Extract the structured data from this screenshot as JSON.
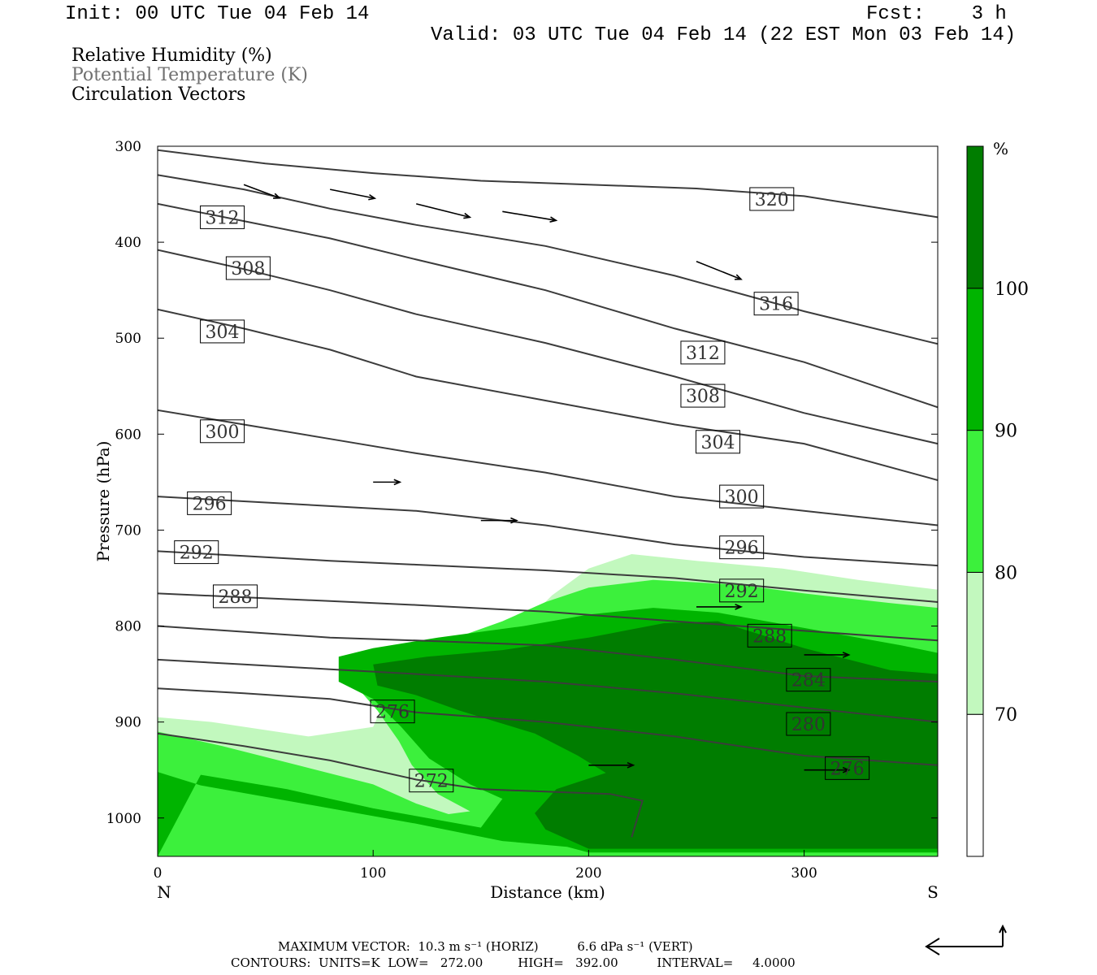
{
  "header": {
    "init": "Init: 00 UTC Tue 04 Feb 14",
    "fcst": "Fcst:    3 h",
    "valid": "Valid: 03 UTC Tue 04 Feb 14 (22 EST Mon 03 Feb 14)"
  },
  "fields": {
    "rh": "Relative Humidity (%)",
    "theta": "Potential Temperature (K)",
    "vectors": "Circulation Vectors"
  },
  "colors": {
    "c70": "#c2f8be",
    "c80": "#3cf03c",
    "c90": "#00b400",
    "c100": "#007d00",
    "contour": "#3c3c3c"
  },
  "chart_data": {
    "type": "cross-section",
    "xlabel": "Distance (km)",
    "ylabel": "Pressure (hPa)",
    "xlim": [
      0,
      362
    ],
    "ylim": [
      1040,
      300
    ],
    "x_ticks": [
      "0",
      "100",
      "200",
      "300"
    ],
    "x_tick_values": [
      0,
      100,
      200,
      300
    ],
    "y_ticks": [
      "300",
      "400",
      "500",
      "600",
      "700",
      "800",
      "900",
      "1000"
    ],
    "y_tick_values": [
      300,
      400,
      500,
      600,
      700,
      800,
      900,
      1000
    ],
    "left_end": "N",
    "right_end": "S",
    "colorbar": {
      "unit": "%",
      "levels": [
        "70",
        "80",
        "90",
        "100"
      ]
    },
    "rh_fills": [
      {
        "level": "70",
        "color": "#c2f8be",
        "points": [
          [
            0,
            1040
          ],
          [
            0,
            895
          ],
          [
            25,
            900
          ],
          [
            70,
            915
          ],
          [
            100,
            905
          ],
          [
            104,
            885
          ],
          [
            114,
            845
          ],
          [
            125,
            830
          ],
          [
            160,
            808
          ],
          [
            175,
            786
          ],
          [
            183,
            768
          ],
          [
            200,
            740
          ],
          [
            220,
            725
          ],
          [
            250,
            732
          ],
          [
            290,
            740
          ],
          [
            325,
            752
          ],
          [
            362,
            762
          ],
          [
            362,
            1040
          ]
        ]
      },
      {
        "level": "80",
        "color": "#3cf03c",
        "points": [
          [
            0,
            1040
          ],
          [
            0,
            910
          ],
          [
            30,
            925
          ],
          [
            65,
            945
          ],
          [
            100,
            965
          ],
          [
            120,
            985
          ],
          [
            135,
            996
          ],
          [
            145,
            993
          ],
          [
            130,
            975
          ],
          [
            118,
            945
          ],
          [
            112,
            920
          ],
          [
            102,
            888
          ],
          [
            95,
            870
          ],
          [
            86,
            855
          ],
          [
            88,
            830
          ],
          [
            110,
            820
          ],
          [
            135,
            815
          ],
          [
            160,
            795
          ],
          [
            180,
            775
          ],
          [
            200,
            760
          ],
          [
            230,
            752
          ],
          [
            270,
            757
          ],
          [
            300,
            766
          ],
          [
            340,
            776
          ],
          [
            362,
            781
          ],
          [
            362,
            1040
          ]
        ]
      },
      {
        "level": "90",
        "color": "#00b400",
        "points": [
          [
            0,
            1040
          ],
          [
            0,
            952
          ],
          [
            20,
            966
          ],
          [
            45,
            976
          ],
          [
            80,
            990
          ],
          [
            120,
            1006
          ],
          [
            160,
            1024
          ],
          [
            190,
            1030
          ],
          [
            200,
            1036
          ],
          [
            362,
            1036
          ],
          [
            362,
            828
          ],
          [
            345,
            820
          ],
          [
            300,
            802
          ],
          [
            260,
            786
          ],
          [
            230,
            781
          ],
          [
            200,
            788
          ],
          [
            170,
            800
          ],
          [
            130,
            812
          ],
          [
            100,
            823
          ],
          [
            84,
            832
          ],
          [
            84,
            858
          ],
          [
            100,
            876
          ],
          [
            113,
            905
          ],
          [
            126,
            938
          ],
          [
            145,
            965
          ],
          [
            160,
            980
          ],
          [
            150,
            1010
          ],
          [
            100,
            990
          ],
          [
            60,
            970
          ],
          [
            20,
            955
          ]
        ]
      },
      {
        "level": "100",
        "color": "#007d00",
        "points": [
          [
            200,
            1032
          ],
          [
            362,
            1032
          ],
          [
            362,
            850
          ],
          [
            340,
            846
          ],
          [
            300,
            823
          ],
          [
            260,
            795
          ],
          [
            235,
            797
          ],
          [
            200,
            812
          ],
          [
            160,
            825
          ],
          [
            125,
            832
          ],
          [
            100,
            840
          ],
          [
            102,
            862
          ],
          [
            120,
            872
          ],
          [
            140,
            888
          ],
          [
            175,
            912
          ],
          [
            195,
            935
          ],
          [
            208,
            953
          ],
          [
            185,
            970
          ],
          [
            175,
            995
          ],
          [
            180,
            1012
          ]
        ]
      }
    ],
    "theta_contours": [
      {
        "label": "320",
        "label_xy": [
          285,
          355
        ],
        "points": [
          [
            0,
            304
          ],
          [
            50,
            318
          ],
          [
            100,
            328
          ],
          [
            150,
            336
          ],
          [
            200,
            340
          ],
          [
            250,
            344
          ],
          [
            300,
            352
          ],
          [
            362,
            374
          ]
        ]
      },
      {
        "label": "316",
        "label_xy": [
          287,
          464
        ],
        "points": [
          [
            0,
            330
          ],
          [
            40,
            345
          ],
          [
            80,
            365
          ],
          [
            120,
            382
          ],
          [
            180,
            404
          ],
          [
            240,
            435
          ],
          [
            300,
            472
          ],
          [
            362,
            506
          ]
        ]
      },
      {
        "label": "312",
        "label_xy": [
          30,
          374
        ],
        "points": [
          [
            0,
            360
          ],
          [
            40,
            378
          ],
          [
            80,
            396
          ],
          [
            120,
            418
          ],
          [
            180,
            450
          ],
          [
            240,
            490
          ],
          [
            300,
            525
          ],
          [
            362,
            572
          ]
        ]
      },
      {
        "label": "312",
        "label_xy": [
          253,
          515
        ],
        "points": []
      },
      {
        "label": "308",
        "label_xy": [
          42,
          427
        ],
        "points": [
          [
            0,
            408
          ],
          [
            40,
            428
          ],
          [
            80,
            450
          ],
          [
            120,
            475
          ],
          [
            180,
            505
          ],
          [
            240,
            540
          ],
          [
            300,
            578
          ],
          [
            362,
            610
          ]
        ]
      },
      {
        "label": "308",
        "label_xy": [
          253,
          560
        ],
        "points": []
      },
      {
        "label": "304",
        "label_xy": [
          30,
          493
        ],
        "points": [
          [
            0,
            470
          ],
          [
            40,
            490
          ],
          [
            80,
            512
          ],
          [
            120,
            540
          ],
          [
            180,
            565
          ],
          [
            240,
            590
          ],
          [
            300,
            610
          ],
          [
            362,
            648
          ]
        ]
      },
      {
        "label": "304",
        "label_xy": [
          260,
          608
        ],
        "points": []
      },
      {
        "label": "300",
        "label_xy": [
          30,
          597
        ],
        "points": [
          [
            0,
            575
          ],
          [
            40,
            590
          ],
          [
            80,
            605
          ],
          [
            120,
            620
          ],
          [
            180,
            640
          ],
          [
            240,
            665
          ],
          [
            300,
            680
          ],
          [
            362,
            695
          ]
        ]
      },
      {
        "label": "300",
        "label_xy": [
          271,
          665
        ],
        "points": []
      },
      {
        "label": "296",
        "label_xy": [
          24,
          672
        ],
        "points": [
          [
            0,
            665
          ],
          [
            40,
            670
          ],
          [
            80,
            675
          ],
          [
            120,
            680
          ],
          [
            180,
            695
          ],
          [
            240,
            715
          ],
          [
            300,
            728
          ],
          [
            362,
            737
          ]
        ]
      },
      {
        "label": "296",
        "label_xy": [
          271,
          718
        ],
        "points": []
      },
      {
        "label": "292",
        "label_xy": [
          18,
          723
        ],
        "points": [
          [
            0,
            722
          ],
          [
            40,
            727
          ],
          [
            80,
            732
          ],
          [
            120,
            736
          ],
          [
            180,
            742
          ],
          [
            240,
            750
          ],
          [
            300,
            763
          ],
          [
            362,
            775
          ]
        ]
      },
      {
        "label": "292",
        "label_xy": [
          271,
          763
        ],
        "points": []
      },
      {
        "label": "288",
        "label_xy": [
          36,
          769
        ],
        "points": [
          [
            0,
            766
          ],
          [
            40,
            770
          ],
          [
            80,
            774
          ],
          [
            120,
            778
          ],
          [
            180,
            785
          ],
          [
            240,
            795
          ],
          [
            300,
            805
          ],
          [
            362,
            815
          ]
        ]
      },
      {
        "label": "288",
        "label_xy": [
          284,
          810
        ],
        "points": []
      },
      {
        "label": "284",
        "label_xy": [
          302,
          856
        ],
        "points": [
          [
            0,
            800
          ],
          [
            40,
            806
          ],
          [
            80,
            812
          ],
          [
            120,
            815
          ],
          [
            180,
            820
          ],
          [
            240,
            835
          ],
          [
            300,
            852
          ],
          [
            362,
            858
          ]
        ]
      },
      {
        "label": "280",
        "label_xy": [
          302,
          902
        ],
        "points": [
          [
            0,
            835
          ],
          [
            40,
            840
          ],
          [
            80,
            845
          ],
          [
            120,
            850
          ],
          [
            180,
            858
          ],
          [
            240,
            870
          ],
          [
            300,
            885
          ],
          [
            362,
            900
          ]
        ]
      },
      {
        "label": "276",
        "label_xy": [
          109,
          889
        ],
        "points": [
          [
            0,
            865
          ],
          [
            40,
            870
          ],
          [
            80,
            876
          ],
          [
            120,
            890
          ],
          [
            180,
            900
          ],
          [
            240,
            915
          ],
          [
            300,
            935
          ],
          [
            362,
            945
          ]
        ]
      },
      {
        "label": "276",
        "label_xy": [
          320,
          948
        ],
        "points": []
      },
      {
        "label": "272",
        "label_xy": [
          127,
          961
        ],
        "points": [
          [
            0,
            912
          ],
          [
            40,
            925
          ],
          [
            80,
            940
          ],
          [
            120,
            960
          ],
          [
            150,
            970
          ],
          [
            210,
            975
          ],
          [
            225,
            982
          ],
          [
            220,
            1020
          ]
        ]
      }
    ],
    "vectors_sample": [
      {
        "x": 40,
        "p": 340,
        "u": 8,
        "w": -3
      },
      {
        "x": 80,
        "p": 345,
        "u": 10,
        "w": -2
      },
      {
        "x": 120,
        "p": 360,
        "u": 12,
        "w": -3
      },
      {
        "x": 160,
        "p": 368,
        "u": 12,
        "w": -2
      },
      {
        "x": 250,
        "p": 420,
        "u": 10,
        "w": -4
      },
      {
        "x": 100,
        "p": 650,
        "u": 6,
        "w": 0
      },
      {
        "x": 150,
        "p": 690,
        "u": 8,
        "w": 0
      },
      {
        "x": 250,
        "p": 780,
        "u": 10,
        "w": 0
      },
      {
        "x": 300,
        "p": 830,
        "u": 10,
        "w": 0
      },
      {
        "x": 200,
        "p": 945,
        "u": 10,
        "w": 0
      },
      {
        "x": 300,
        "p": 950,
        "u": 10,
        "w": 0
      }
    ],
    "max_vector": "MAXIMUM VECTOR:  10.3 m s⁻¹ (HORIZ)          6.6 dPa s⁻¹ (VERT)",
    "contours_info": "CONTOURS:  UNITS=K  LOW=   272.00         HIGH=   392.00          INTERVAL=     4.0000"
  }
}
